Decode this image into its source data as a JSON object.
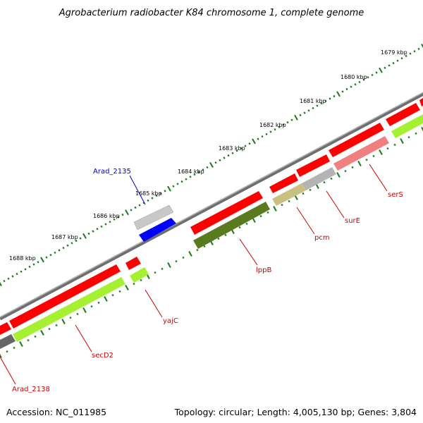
{
  "title": "Agrobacterium radiobacter K84 chromosome 1, complete genome",
  "footer": {
    "accession": "Accession: NC_011985",
    "summary": "Topology: circular; Length: 4,005,130 bp; Genes: 3,804"
  },
  "ruler_labels": [
    "1679 kbp",
    "1680 kbp",
    "1681 kbp",
    "1682 kbp",
    "1683 kbp",
    "1684 kbp",
    "1685 kbp",
    "1686 kbp",
    "1687 kbp",
    "1688 kbp"
  ],
  "genes": [
    {
      "name": "Arad_2135",
      "color": "#0000cc"
    },
    {
      "name": "lppB",
      "color": "#cc0000"
    },
    {
      "name": "pcm",
      "color": "#cc0000"
    },
    {
      "name": "surE",
      "color": "#cc0000"
    },
    {
      "name": "serS",
      "color": "#cc0000"
    },
    {
      "name": "yajC",
      "color": "#cc0000"
    },
    {
      "name": "secD2",
      "color": "#cc0000"
    },
    {
      "name": "Arad_2138",
      "color": "#cc0000"
    }
  ],
  "colors": {
    "ruler_tick": "#1a7a1a",
    "backbone": "#888888",
    "forward_cds": "#ff0000",
    "gene_highlight_green": "#a6f032",
    "gene_olive": "#5a7a20",
    "gene_grey": "#b4b4b4",
    "gene_blue": "#0000ff",
    "gene_pink": "#f08080",
    "gene_khaki": "#c8c080"
  }
}
